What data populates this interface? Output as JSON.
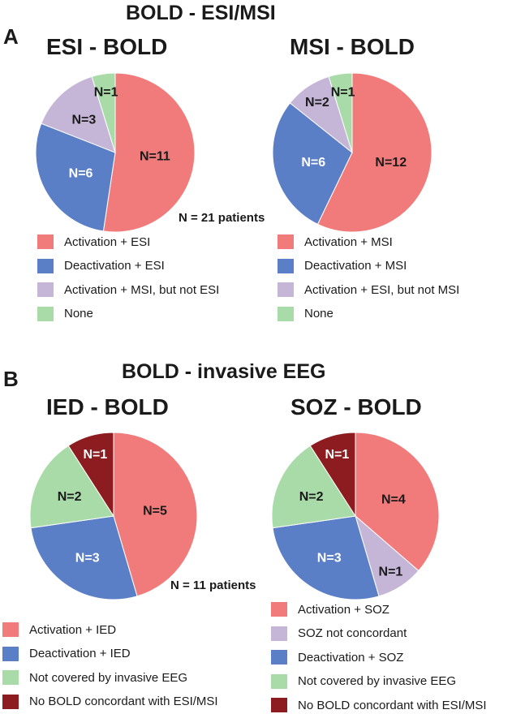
{
  "panelA": {
    "letter": "A",
    "title": "BOLD - ESI/MSI",
    "n_patients": "N = 21 patients"
  },
  "panelB": {
    "letter": "B",
    "title": "BOLD - invasive EEG",
    "n_patients": "N = 11 patients"
  },
  "colors": {
    "activation": "#f17b7b",
    "deactivation": "#5a7fc7",
    "lavender": "#c5b6d8",
    "green": "#a8dba8",
    "darkred": "#8c1c1f"
  },
  "chart_data": [
    {
      "type": "pie",
      "title": "ESI - BOLD",
      "slices": [
        {
          "name": "Activation + ESI",
          "value": 11,
          "label": "N=11",
          "color": "#f17b7b",
          "label_color": "#1a1a1a"
        },
        {
          "name": "Deactivation + ESI",
          "value": 6,
          "label": "N=6",
          "color": "#5a7fc7",
          "label_color": "#ffffff"
        },
        {
          "name": "Activation + MSI, but not ESI",
          "value": 3,
          "label": "N=3",
          "color": "#c5b6d8",
          "label_color": "#1a1a1a"
        },
        {
          "name": "None",
          "value": 1,
          "label": "N=1",
          "color": "#a8dba8",
          "label_color": "#1a1a1a"
        }
      ],
      "legend": [
        "Activation + ESI",
        "Deactivation + ESI",
        "Activation + MSI, but not ESI",
        "None"
      ]
    },
    {
      "type": "pie",
      "title": "MSI - BOLD",
      "slices": [
        {
          "name": "Activation + MSI",
          "value": 12,
          "label": "N=12",
          "color": "#f17b7b",
          "label_color": "#1a1a1a"
        },
        {
          "name": "Deactivation + MSI",
          "value": 6,
          "label": "N=6",
          "color": "#5a7fc7",
          "label_color": "#ffffff"
        },
        {
          "name": "Activation + ESI, but not MSI",
          "value": 2,
          "label": "N=2",
          "color": "#c5b6d8",
          "label_color": "#1a1a1a"
        },
        {
          "name": "None",
          "value": 1,
          "label": "N=1",
          "color": "#a8dba8",
          "label_color": "#1a1a1a"
        }
      ],
      "legend": [
        "Activation + MSI",
        "Deactivation + MSI",
        "Activation + ESI, but not MSI",
        "None"
      ]
    },
    {
      "type": "pie",
      "title": "IED - BOLD",
      "slices": [
        {
          "name": "Activation + IED",
          "value": 5,
          "label": "N=5",
          "color": "#f17b7b",
          "label_color": "#1a1a1a"
        },
        {
          "name": "Deactivation + IED",
          "value": 3,
          "label": "N=3",
          "color": "#5a7fc7",
          "label_color": "#ffffff"
        },
        {
          "name": "Not covered by invasive EEG",
          "value": 2,
          "label": "N=2",
          "color": "#a8dba8",
          "label_color": "#1a1a1a"
        },
        {
          "name": "No BOLD concordant with ESI/MSI",
          "value": 1,
          "label": "N=1",
          "color": "#8c1c1f",
          "label_color": "#ffffff"
        }
      ],
      "legend": [
        "Activation + IED",
        "Deactivation + IED",
        "Not covered by invasive EEG",
        "No BOLD concordant with ESI/MSI"
      ]
    },
    {
      "type": "pie",
      "title": "SOZ - BOLD",
      "slices": [
        {
          "name": "Activation + SOZ",
          "value": 4,
          "label": "N=4",
          "color": "#f17b7b",
          "label_color": "#1a1a1a"
        },
        {
          "name": "SOZ not concordant",
          "value": 1,
          "label": "N=1",
          "color": "#c5b6d8",
          "label_color": "#1a1a1a"
        },
        {
          "name": "Deactivation + SOZ",
          "value": 3,
          "label": "N=3",
          "color": "#5a7fc7",
          "label_color": "#ffffff"
        },
        {
          "name": "Not covered by invasive EEG",
          "value": 2,
          "label": "N=2",
          "color": "#a8dba8",
          "label_color": "#1a1a1a"
        },
        {
          "name": "No BOLD concordant with ESI/MSI",
          "value": 1,
          "label": "N=1",
          "color": "#8c1c1f",
          "label_color": "#ffffff"
        }
      ],
      "legend": [
        "Activation + SOZ",
        "SOZ not concordant",
        "Deactivation + SOZ",
        "Not covered by invasive EEG",
        "No BOLD concordant with ESI/MSI"
      ]
    }
  ]
}
